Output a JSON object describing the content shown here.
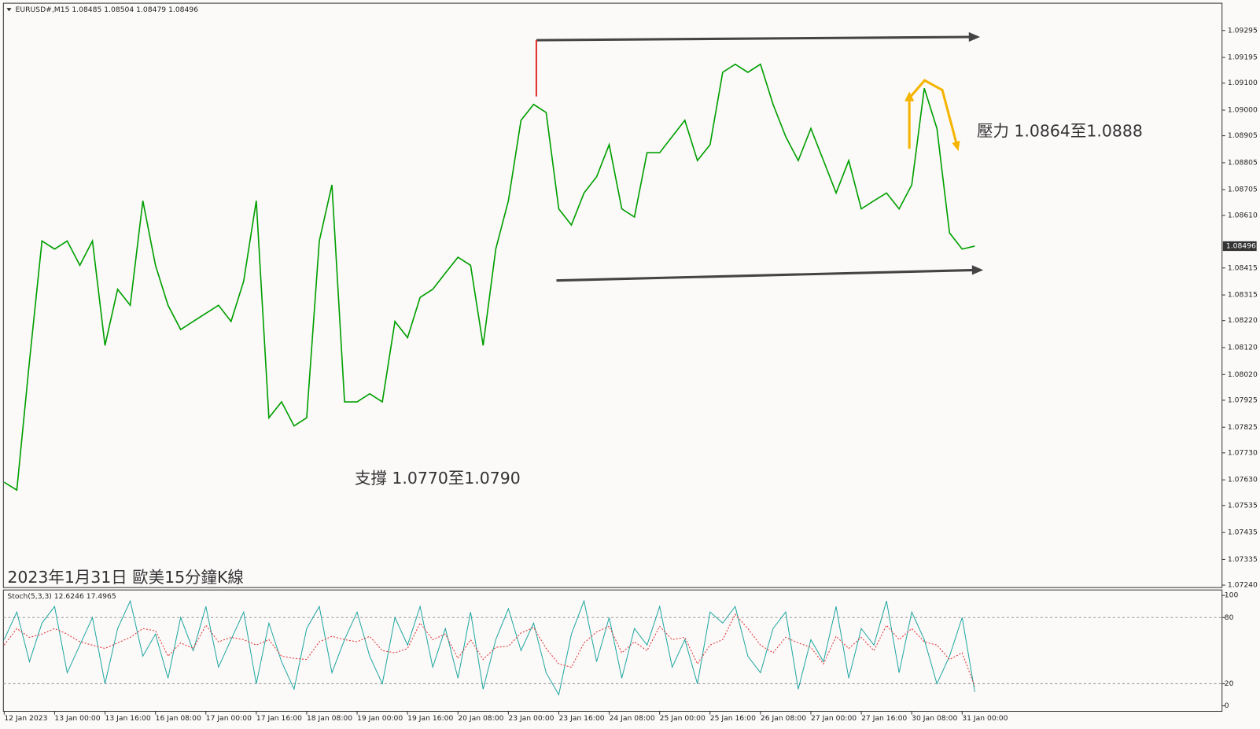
{
  "chart_data": [
    {
      "type": "line",
      "title": "EURUSD#,M15  1.08485 1.08504 1.08479 1.08496",
      "annotations": [
        "支撐 1.0770至1.0790",
        "壓力 1.0864至1.0888",
        "2023年1月31日 歐美15分鐘K線"
      ],
      "x": [
        "12 Jan 2023",
        null,
        null,
        null,
        "13 Jan 00:00",
        null,
        null,
        null,
        "13 Jan 16:00",
        null,
        null,
        null,
        "16 Jan 08:00",
        null,
        null,
        null,
        "17 Jan 00:00",
        null,
        null,
        null,
        "17 Jan 16:00",
        null,
        null,
        null,
        "18 Jan 08:00",
        null,
        null,
        null,
        "19 Jan 00:00",
        null,
        null,
        null,
        "19 Jan 16:00",
        null,
        null,
        null,
        "20 Jan 08:00",
        null,
        null,
        null,
        "23 Jan 00:00",
        null,
        null,
        null,
        "23 Jan 16:00",
        null,
        null,
        null,
        "24 Jan 08:00",
        null,
        null,
        null,
        "25 Jan 00:00",
        null,
        null,
        null,
        "25 Jan 16:00",
        null,
        null,
        null,
        "26 Jan 08:00",
        null,
        null,
        null,
        "27 Jan 00:00",
        null,
        null,
        null,
        "27 Jan 16:00",
        null,
        null,
        null,
        "30 Jan 08:00",
        null,
        null,
        null,
        "31 Jan 00:00",
        null
      ],
      "series": [
        {
          "color": "#00a000",
          "values": [
            1.07621,
            1.07592,
            1.08068,
            1.08515,
            1.08485,
            1.08515,
            1.08425,
            1.08515,
            1.08128,
            1.08336,
            1.08277,
            1.08664,
            1.08425,
            1.08277,
            1.08187,
            1.08217,
            1.08247,
            1.08277,
            1.08217,
            1.08366,
            1.08664,
            1.0786,
            1.07919,
            1.0783,
            1.0786,
            1.08515,
            1.08723,
            1.07919,
            1.07919,
            1.07949,
            1.07919,
            1.08217,
            1.08157,
            1.08306,
            1.08336,
            1.08396,
            1.08455,
            1.08425,
            1.08128,
            1.08485,
            1.08664,
            1.08962,
            1.09021,
            1.08991,
            1.08634,
            1.08574,
            1.08693,
            1.08753,
            1.08872,
            1.08634,
            1.08604,
            1.08842,
            1.08842,
            1.08902,
            1.08962,
            1.08813,
            1.08872,
            1.0914,
            1.0917,
            1.0914,
            1.0917,
            1.09021,
            1.08902,
            1.08813,
            1.08932,
            1.08813,
            1.08693,
            1.08813,
            1.08634,
            1.08664,
            1.08693,
            1.08634,
            1.08723,
            1.09081,
            1.08932,
            1.08545,
            1.08485,
            1.08496
          ]
        }
      ],
      "current_price": 1.08496,
      "ylim": [
        1.07231,
        1.09396
      ],
      "yticks": [
        1.09295,
        1.09195,
        {
          "value": 1.091,
          "label": "1.09100"
        },
        {
          "value": 1.09,
          "label": "1.09000"
        },
        1.08905,
        1.08805,
        1.08705,
        {
          "value": 1.0861,
          "label": "1.08610"
        },
        1.08415,
        1.08315,
        {
          "value": 1.0822,
          "label": "1.08220"
        },
        {
          "value": 1.0812,
          "label": "1.08120"
        },
        {
          "value": 1.0802,
          "label": "1.08020"
        },
        1.07925,
        1.07825,
        {
          "value": 1.0773,
          "label": "1.07730"
        },
        {
          "value": 1.0763,
          "label": "1.07630"
        },
        1.07535,
        1.07435,
        1.07335,
        {
          "value": 1.0724,
          "label": "1.07240"
        }
      ]
    },
    {
      "type": "line",
      "title": "Stoch(5,3,3) 12.6246 17.4965",
      "series": [
        {
          "color": "#20a8a0",
          "line_style": "solid",
          "values": [
            60,
            85,
            40,
            75,
            90,
            30,
            55,
            80,
            20,
            70,
            95,
            45,
            65,
            25,
            80,
            50,
            90,
            35,
            60,
            85,
            20,
            75,
            40,
            15,
            70,
            90,
            30,
            60,
            85,
            45,
            20,
            80,
            55,
            90,
            35,
            70,
            25,
            85,
            15,
            60,
            88,
            50,
            75,
            30,
            10,
            65,
            95,
            40,
            80,
            25,
            70,
            55,
            90,
            35,
            60,
            20,
            85,
            75,
            90,
            45,
            30,
            70,
            85,
            15,
            60,
            40,
            90,
            25,
            70,
            55,
            95,
            30,
            85,
            60,
            20,
            45,
            80,
            12.6246
          ]
        },
        {
          "color": "#e03030",
          "line_style": "dashed",
          "values": [
            55,
            70,
            62,
            65,
            70,
            65,
            58,
            55,
            52,
            57,
            62,
            70,
            68,
            45,
            57,
            52,
            73,
            58,
            62,
            60,
            55,
            60,
            45,
            43,
            42,
            58,
            63,
            60,
            58,
            63,
            50,
            48,
            52,
            75,
            60,
            65,
            43,
            60,
            42,
            53,
            54,
            66,
            71,
            52,
            38,
            35,
            57,
            67,
            72,
            48,
            58,
            50,
            72,
            60,
            62,
            38,
            55,
            60,
            83,
            70,
            55,
            48,
            62,
            57,
            53,
            38,
            63,
            52,
            62,
            50,
            73,
            60,
            70,
            58,
            55,
            42,
            48,
            17.4965
          ]
        }
      ],
      "ylim": [
        -5,
        105
      ],
      "yticks": [
        100,
        80,
        20,
        0
      ]
    }
  ]
}
